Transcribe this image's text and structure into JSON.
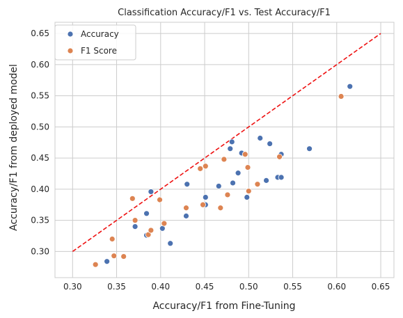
{
  "chart_data": {
    "type": "scatter",
    "title": "Classification Accuracy/F1 vs. Test Accuracy/F1",
    "xlabel": "Accuracy/F1 from Fine-Tuning",
    "ylabel": "Accuracy/F1 from deployed model",
    "xlim": [
      0.28,
      0.665
    ],
    "ylim": [
      0.258,
      0.668
    ],
    "xticks": [
      "0.30",
      "0.35",
      "0.40",
      "0.45",
      "0.50",
      "0.55",
      "0.60",
      "0.65"
    ],
    "yticks": [
      "0.30",
      "0.35",
      "0.40",
      "0.45",
      "0.50",
      "0.55",
      "0.60",
      "0.65"
    ],
    "grid": true,
    "legend_position": "top-left",
    "reference_line": {
      "style": "dashed",
      "color": "#ee1111",
      "from": [
        0.3,
        0.3
      ],
      "to": [
        0.65,
        0.65
      ]
    },
    "series": [
      {
        "name": "Accuracy",
        "color": "#4c72b0",
        "points": [
          [
            0.339,
            0.284
          ],
          [
            0.371,
            0.34
          ],
          [
            0.384,
            0.326
          ],
          [
            0.384,
            0.361
          ],
          [
            0.389,
            0.396
          ],
          [
            0.402,
            0.337
          ],
          [
            0.411,
            0.313
          ],
          [
            0.429,
            0.357
          ],
          [
            0.43,
            0.408
          ],
          [
            0.451,
            0.387
          ],
          [
            0.451,
            0.375
          ],
          [
            0.466,
            0.405
          ],
          [
            0.479,
            0.465
          ],
          [
            0.481,
            0.476
          ],
          [
            0.482,
            0.41
          ],
          [
            0.488,
            0.426
          ],
          [
            0.492,
            0.458
          ],
          [
            0.498,
            0.387
          ],
          [
            0.513,
            0.482
          ],
          [
            0.52,
            0.414
          ],
          [
            0.524,
            0.473
          ],
          [
            0.533,
            0.419
          ],
          [
            0.537,
            0.456
          ],
          [
            0.537,
            0.419
          ],
          [
            0.569,
            0.465
          ],
          [
            0.615,
            0.565
          ]
        ]
      },
      {
        "name": "F1 Score",
        "color": "#dd8452",
        "points": [
          [
            0.326,
            0.279
          ],
          [
            0.345,
            0.32
          ],
          [
            0.347,
            0.293
          ],
          [
            0.358,
            0.292
          ],
          [
            0.368,
            0.385
          ],
          [
            0.371,
            0.35
          ],
          [
            0.386,
            0.327
          ],
          [
            0.389,
            0.334
          ],
          [
            0.399,
            0.383
          ],
          [
            0.404,
            0.345
          ],
          [
            0.429,
            0.37
          ],
          [
            0.445,
            0.433
          ],
          [
            0.448,
            0.375
          ],
          [
            0.451,
            0.437
          ],
          [
            0.468,
            0.37
          ],
          [
            0.472,
            0.448
          ],
          [
            0.476,
            0.391
          ],
          [
            0.496,
            0.456
          ],
          [
            0.499,
            0.435
          ],
          [
            0.5,
            0.397
          ],
          [
            0.51,
            0.408
          ],
          [
            0.535,
            0.452
          ],
          [
            0.605,
            0.549
          ]
        ]
      }
    ]
  }
}
